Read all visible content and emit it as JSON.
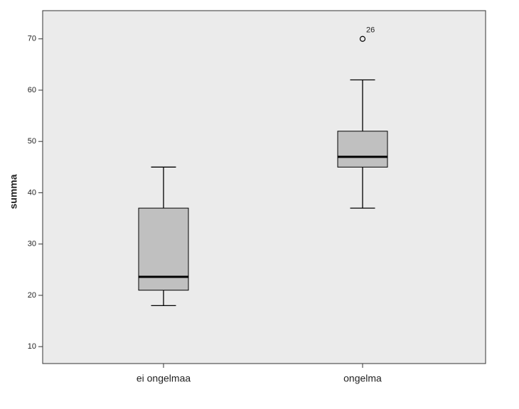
{
  "chart_data": {
    "type": "box",
    "y_label": "summa",
    "categories": [
      "ei ongelmaa",
      "ongelma"
    ],
    "boxes": [
      {
        "min": 18,
        "q1": 21,
        "median": 23.6,
        "q3": 37,
        "max": 45,
        "outliers": [],
        "outlier_labels": []
      },
      {
        "min": 37,
        "q1": 45,
        "median": 47,
        "q3": 52,
        "max": 62,
        "outliers": [
          70
        ],
        "outlier_labels": [
          "26"
        ]
      }
    ],
    "color": "#c0c0c0",
    "plot_background": "#ebebeb",
    "ylim": [
      6.7,
      75.5
    ],
    "yticks": [
      10,
      20,
      30,
      40,
      50,
      60,
      70
    ],
    "grid": false
  }
}
